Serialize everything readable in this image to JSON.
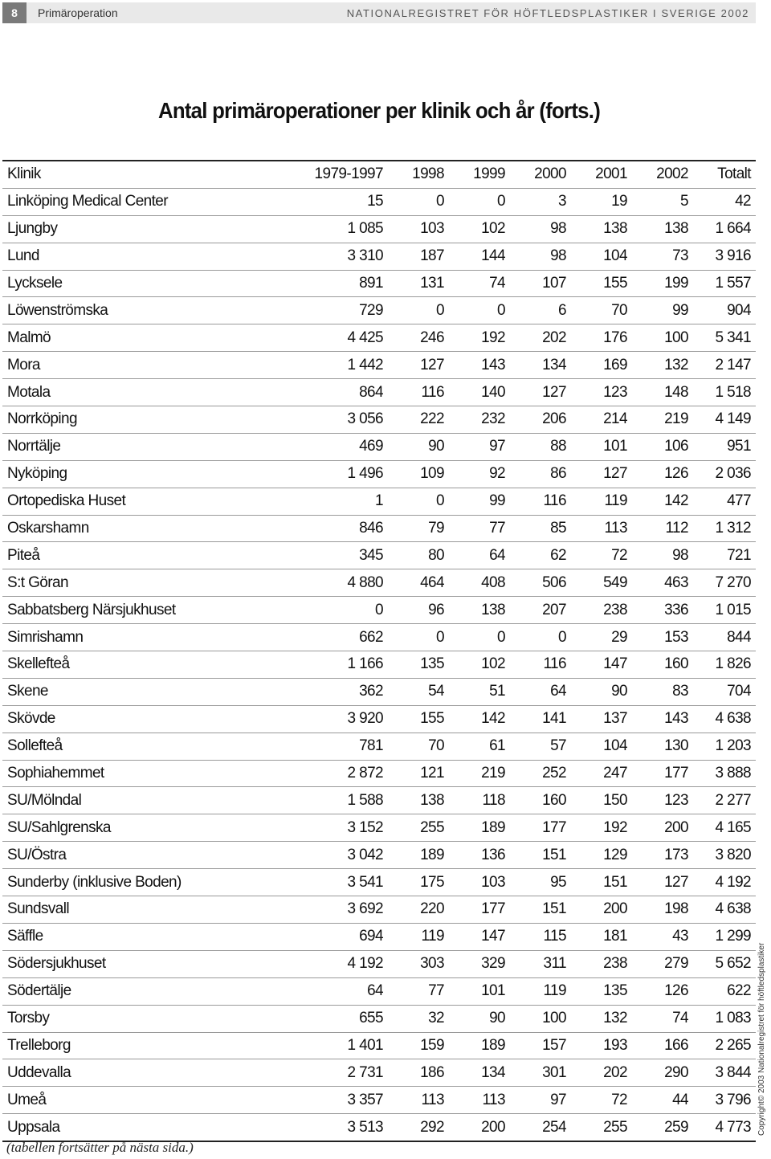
{
  "header": {
    "page_number": "8",
    "section": "Primäroperation",
    "registry": "NATIONALREGISTRET FÖR HÖFTLEDSPLASTIKER I SVERIGE 2002"
  },
  "title": "Antal primäroperationer per klinik och år (forts.)",
  "table": {
    "columns": [
      "Klinik",
      "1979-1997",
      "1998",
      "1999",
      "2000",
      "2001",
      "2002",
      "Totalt"
    ],
    "rows": [
      [
        "Linköping Medical Center",
        "15",
        "0",
        "0",
        "3",
        "19",
        "5",
        "42"
      ],
      [
        "Ljungby",
        "1 085",
        "103",
        "102",
        "98",
        "138",
        "138",
        "1 664"
      ],
      [
        "Lund",
        "3 310",
        "187",
        "144",
        "98",
        "104",
        "73",
        "3 916"
      ],
      [
        "Lycksele",
        "891",
        "131",
        "74",
        "107",
        "155",
        "199",
        "1 557"
      ],
      [
        "Löwenströmska",
        "729",
        "0",
        "0",
        "6",
        "70",
        "99",
        "904"
      ],
      [
        "Malmö",
        "4 425",
        "246",
        "192",
        "202",
        "176",
        "100",
        "5 341"
      ],
      [
        "Mora",
        "1 442",
        "127",
        "143",
        "134",
        "169",
        "132",
        "2 147"
      ],
      [
        "Motala",
        "864",
        "116",
        "140",
        "127",
        "123",
        "148",
        "1 518"
      ],
      [
        "Norrköping",
        "3 056",
        "222",
        "232",
        "206",
        "214",
        "219",
        "4 149"
      ],
      [
        "Norrtälje",
        "469",
        "90",
        "97",
        "88",
        "101",
        "106",
        "951"
      ],
      [
        "Nyköping",
        "1 496",
        "109",
        "92",
        "86",
        "127",
        "126",
        "2 036"
      ],
      [
        "Ortopediska Huset",
        "1",
        "0",
        "99",
        "116",
        "119",
        "142",
        "477"
      ],
      [
        "Oskarshamn",
        "846",
        "79",
        "77",
        "85",
        "113",
        "112",
        "1 312"
      ],
      [
        "Piteå",
        "345",
        "80",
        "64",
        "62",
        "72",
        "98",
        "721"
      ],
      [
        "S:t Göran",
        "4 880",
        "464",
        "408",
        "506",
        "549",
        "463",
        "7 270"
      ],
      [
        "Sabbatsberg Närsjukhuset",
        "0",
        "96",
        "138",
        "207",
        "238",
        "336",
        "1 015"
      ],
      [
        "Simrishamn",
        "662",
        "0",
        "0",
        "0",
        "29",
        "153",
        "844"
      ],
      [
        "Skellefteå",
        "1 166",
        "135",
        "102",
        "116",
        "147",
        "160",
        "1 826"
      ],
      [
        "Skene",
        "362",
        "54",
        "51",
        "64",
        "90",
        "83",
        "704"
      ],
      [
        "Skövde",
        "3 920",
        "155",
        "142",
        "141",
        "137",
        "143",
        "4 638"
      ],
      [
        "Sollefteå",
        "781",
        "70",
        "61",
        "57",
        "104",
        "130",
        "1 203"
      ],
      [
        "Sophiahemmet",
        "2 872",
        "121",
        "219",
        "252",
        "247",
        "177",
        "3 888"
      ],
      [
        "SU/Mölndal",
        "1 588",
        "138",
        "118",
        "160",
        "150",
        "123",
        "2 277"
      ],
      [
        "SU/Sahlgrenska",
        "3 152",
        "255",
        "189",
        "177",
        "192",
        "200",
        "4 165"
      ],
      [
        "SU/Östra",
        "3 042",
        "189",
        "136",
        "151",
        "129",
        "173",
        "3 820"
      ],
      [
        "Sunderby (inklusive Boden)",
        "3 541",
        "175",
        "103",
        "95",
        "151",
        "127",
        "4 192"
      ],
      [
        "Sundsvall",
        "3 692",
        "220",
        "177",
        "151",
        "200",
        "198",
        "4 638"
      ],
      [
        "Säffle",
        "694",
        "119",
        "147",
        "115",
        "181",
        "43",
        "1 299"
      ],
      [
        "Södersjukhuset",
        "4 192",
        "303",
        "329",
        "311",
        "238",
        "279",
        "5 652"
      ],
      [
        "Södertälje",
        "64",
        "77",
        "101",
        "119",
        "135",
        "126",
        "622"
      ],
      [
        "Torsby",
        "655",
        "32",
        "90",
        "100",
        "132",
        "74",
        "1 083"
      ],
      [
        "Trelleborg",
        "1 401",
        "159",
        "189",
        "157",
        "193",
        "166",
        "2 265"
      ],
      [
        "Uddevalla",
        "2 731",
        "186",
        "134",
        "301",
        "202",
        "290",
        "3 844"
      ],
      [
        "Umeå",
        "3 357",
        "113",
        "113",
        "97",
        "72",
        "44",
        "3 796"
      ],
      [
        "Uppsala",
        "3 513",
        "292",
        "200",
        "254",
        "255",
        "259",
        "4 773"
      ]
    ]
  },
  "footnote": "(tabellen fortsätter på nästa sida.)",
  "copyright": "Copyright© 2003 Nationalregistret för höftledsplastiker"
}
